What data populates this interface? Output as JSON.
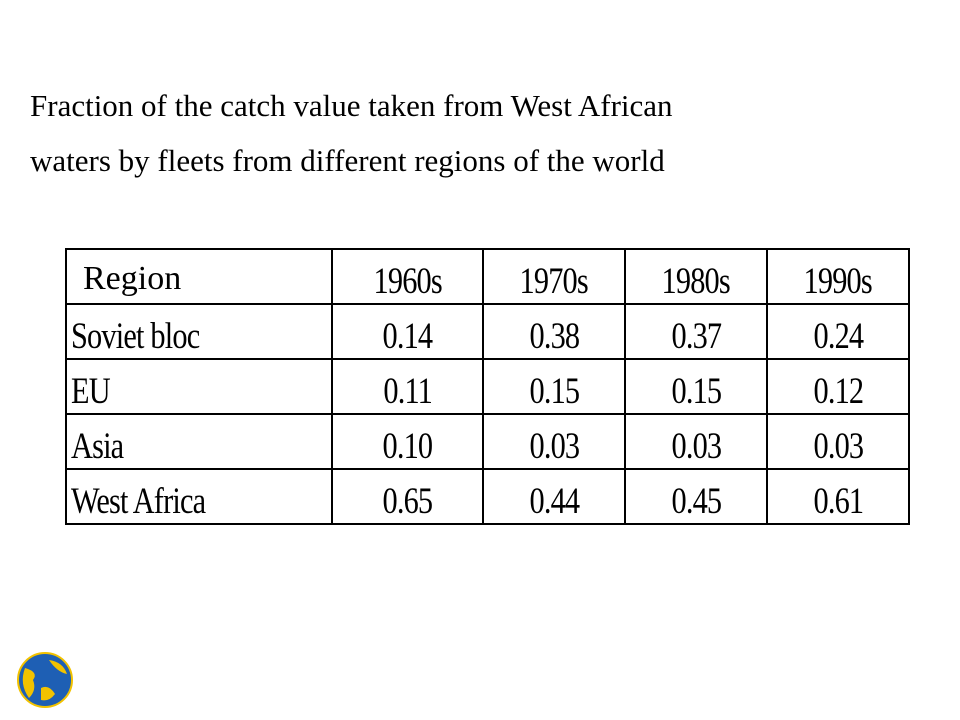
{
  "title": {
    "lines": [
      "Fraction of the catch value taken from West African",
      "waters by fleets from different regions of the world"
    ]
  },
  "table": {
    "header": [
      "Region",
      "1960s",
      "1970s",
      "1980s",
      "1990s"
    ],
    "rows": [
      [
        "Soviet bloc",
        "0.14",
        "0.38",
        "0.37",
        "0.24"
      ],
      [
        "EU",
        "0.11",
        "0.15",
        "0.15",
        "0.12"
      ],
      [
        "Asia",
        "0.10",
        "0.03",
        "0.03",
        "0.03"
      ],
      [
        "West Africa",
        "0.65",
        "0.44",
        "0.45",
        "0.61"
      ]
    ]
  }
}
